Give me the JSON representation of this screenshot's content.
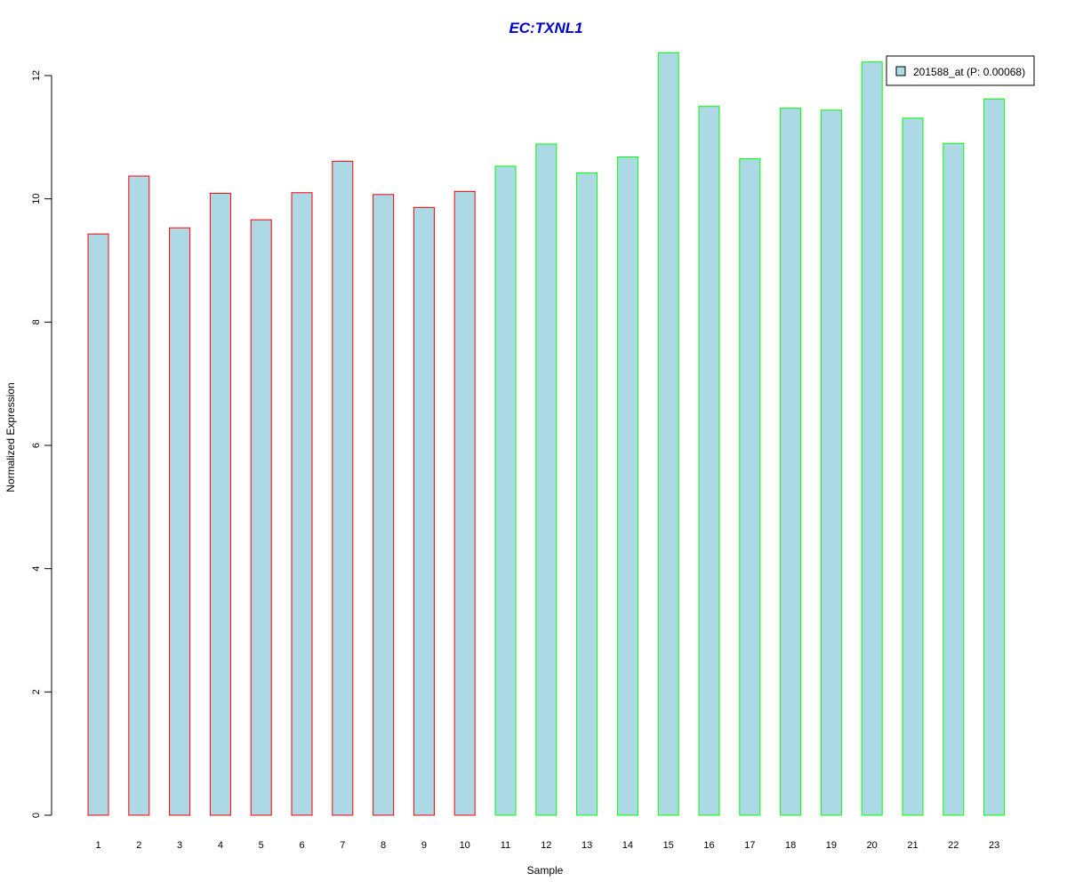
{
  "chart_data": {
    "type": "bar",
    "title": "EC:TXNL1",
    "xlabel": "Sample",
    "ylabel": "Normalized Expression",
    "ylim": [
      0,
      12
    ],
    "yticks": [
      "0",
      "2",
      "4",
      "6",
      "8",
      "10",
      "12"
    ],
    "categories": [
      "1",
      "2",
      "3",
      "4",
      "5",
      "6",
      "7",
      "8",
      "9",
      "10",
      "11",
      "12",
      "13",
      "14",
      "15",
      "16",
      "17",
      "18",
      "19",
      "20",
      "21",
      "22",
      "23"
    ],
    "series": [
      {
        "name": "201588_at (P: 0.00068)",
        "values": [
          9.43,
          10.37,
          9.53,
          10.09,
          9.66,
          10.1,
          10.61,
          10.07,
          9.86,
          10.12,
          10.53,
          10.89,
          10.42,
          10.68,
          12.37,
          11.5,
          10.65,
          11.47,
          11.44,
          12.22,
          11.31,
          10.9,
          11.62
        ]
      }
    ],
    "groups": [
      {
        "from": 1,
        "to": 10,
        "border_color": "#ff0000"
      },
      {
        "from": 11,
        "to": 23,
        "border_color": "#00ff00"
      }
    ],
    "bar_fill": "#add8e6",
    "title_color": "#0000cc",
    "legend_position": "top-right",
    "grid": false
  }
}
